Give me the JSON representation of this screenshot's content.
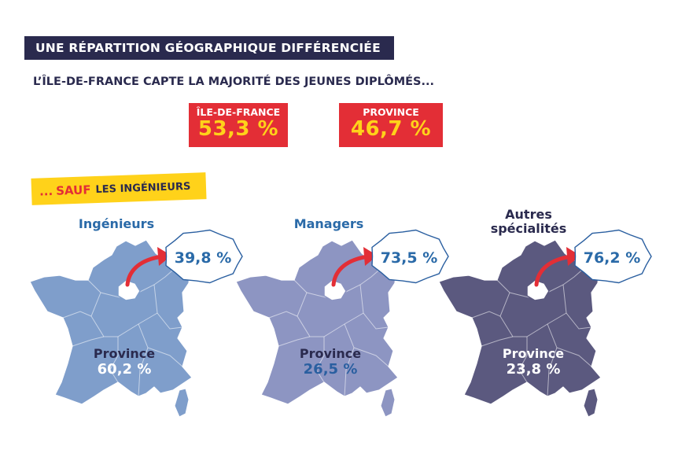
{
  "header": {
    "title": "UNE RÉPARTITION GÉOGRAPHIQUE DIFFÉRENCIÉE",
    "subtitle": "L’ÎLE-DE-FRANCE CAPTE LA MAJORITÉ DES JEUNES DIPLÔMÉS..."
  },
  "totals": [
    {
      "label": "ÎLE-DE-FRANCE",
      "value": "53,3 %"
    },
    {
      "label": "PROVINCE",
      "value": "46,7 %"
    }
  ],
  "exception": {
    "prefix": "...",
    "highlight": "SAUF",
    "rest": "LES INGÉNIEURS"
  },
  "colors": {
    "navy": "#2a2a4e",
    "red": "#e32e36",
    "yellow": "#ffd21a",
    "map_ingenieurs": "#7f9ecb",
    "map_managers": "#8d95c2",
    "map_autres": "#5b597f"
  },
  "chart_data": {
    "type": "table",
    "categories": [
      "Ingénieurs",
      "Managers",
      "Autres spécialités"
    ],
    "series": [
      {
        "name": "Île-de-France",
        "values": [
          39.8,
          73.5,
          76.2
        ]
      },
      {
        "name": "Province",
        "values": [
          60.2,
          26.5,
          23.8
        ]
      }
    ],
    "labels": {
      "idf": [
        "39,8 %",
        "73,5 %",
        "76,2 %"
      ],
      "province_title": "Province",
      "province": [
        "60,2 %",
        "26,5 %",
        "23,8 %"
      ],
      "category_lines": [
        [
          "Ingénieurs"
        ],
        [
          "Managers"
        ],
        [
          "Autres",
          "spécialités"
        ]
      ]
    }
  }
}
